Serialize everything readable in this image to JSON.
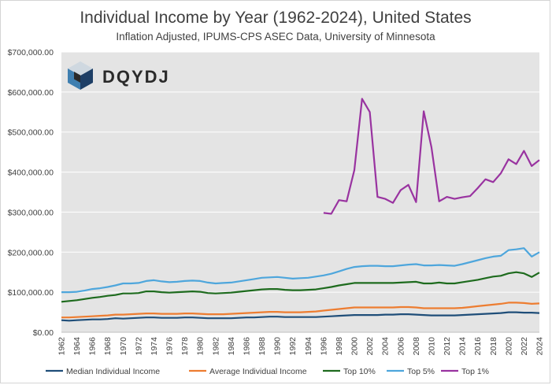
{
  "chart_data": {
    "type": "line",
    "title": "Individual Income by Year (1962-2024), United States",
    "subtitle": "Inflation Adjusted, IPUMS-CPS ASEC Data, University of Minnesota",
    "logo_text": "DQYDJ",
    "xlabel": "",
    "ylabel": "",
    "ylim": [
      0,
      700000
    ],
    "yticks": [
      0,
      100000,
      200000,
      300000,
      400000,
      500000,
      600000,
      700000
    ],
    "ytick_labels": [
      "$0.00",
      "$100,000.00",
      "$200,000.00",
      "$300,000.00",
      "$400,000.00",
      "$500,000.00",
      "$600,000.00",
      "$700,000.00"
    ],
    "xlim": [
      1962,
      2024
    ],
    "xtick_labels": [
      "1962",
      "1964",
      "1966",
      "1968",
      "1970",
      "1972",
      "1974",
      "1976",
      "1978",
      "1980",
      "1982",
      "1984",
      "1986",
      "1988",
      "1990",
      "1992",
      "1994",
      "1996",
      "1998",
      "2000",
      "2002",
      "2004",
      "2006",
      "2008",
      "2010",
      "2012",
      "2014",
      "2016",
      "2018",
      "2020",
      "2022",
      "2024"
    ],
    "grid": true,
    "legend_position": "bottom",
    "series": [
      {
        "name": "Median Individual Income",
        "color": "#1f4e79",
        "x": [
          1962,
          1963,
          1964,
          1965,
          1966,
          1967,
          1968,
          1969,
          1970,
          1971,
          1972,
          1973,
          1974,
          1975,
          1976,
          1977,
          1978,
          1979,
          1980,
          1981,
          1982,
          1983,
          1984,
          1985,
          1986,
          1987,
          1988,
          1989,
          1990,
          1991,
          1992,
          1993,
          1994,
          1995,
          1996,
          1997,
          1998,
          1999,
          2000,
          2001,
          2002,
          2003,
          2004,
          2005,
          2006,
          2007,
          2008,
          2009,
          2010,
          2011,
          2012,
          2013,
          2014,
          2015,
          2016,
          2017,
          2018,
          2019,
          2020,
          2021,
          2022,
          2023,
          2024
        ],
        "values": [
          30000,
          29000,
          30000,
          31000,
          32000,
          32000,
          33000,
          35000,
          34000,
          35000,
          36000,
          37000,
          37000,
          36000,
          36000,
          36000,
          37000,
          37000,
          36000,
          35000,
          35000,
          35000,
          35000,
          36000,
          37000,
          37000,
          38000,
          39000,
          39000,
          38000,
          38000,
          38000,
          38000,
          38000,
          39000,
          40000,
          41000,
          42000,
          43000,
          43000,
          43000,
          43000,
          44000,
          44000,
          45000,
          45000,
          44000,
          43000,
          42000,
          42000,
          42000,
          42000,
          43000,
          44000,
          45000,
          46000,
          47000,
          48000,
          50000,
          50000,
          49000,
          49000,
          48000
        ]
      },
      {
        "name": "Average Individual Income",
        "color": "#ed7d31",
        "x": [
          1962,
          1963,
          1964,
          1965,
          1966,
          1967,
          1968,
          1969,
          1970,
          1971,
          1972,
          1973,
          1974,
          1975,
          1976,
          1977,
          1978,
          1979,
          1980,
          1981,
          1982,
          1983,
          1984,
          1985,
          1986,
          1987,
          1988,
          1989,
          1990,
          1991,
          1992,
          1993,
          1994,
          1995,
          1996,
          1997,
          1998,
          1999,
          2000,
          2001,
          2002,
          2003,
          2004,
          2005,
          2006,
          2007,
          2008,
          2009,
          2010,
          2011,
          2012,
          2013,
          2014,
          2015,
          2016,
          2017,
          2018,
          2019,
          2020,
          2021,
          2022,
          2023,
          2024
        ],
        "values": [
          37000,
          37000,
          38000,
          39000,
          40000,
          41000,
          42000,
          44000,
          44000,
          45000,
          46000,
          47000,
          47000,
          46000,
          46000,
          46000,
          47000,
          47000,
          46000,
          45000,
          45000,
          45000,
          46000,
          47000,
          48000,
          49000,
          50000,
          51000,
          51000,
          50000,
          50000,
          50000,
          51000,
          52000,
          54000,
          56000,
          58000,
          60000,
          62000,
          62000,
          62000,
          62000,
          62000,
          62000,
          63000,
          63000,
          62000,
          60000,
          60000,
          60000,
          60000,
          60000,
          61000,
          63000,
          65000,
          67000,
          69000,
          71000,
          74000,
          74000,
          73000,
          71000,
          72000
        ]
      },
      {
        "name": "Top 10%",
        "color": "#1e6b1e",
        "x": [
          1962,
          1963,
          1964,
          1965,
          1966,
          1967,
          1968,
          1969,
          1970,
          1971,
          1972,
          1973,
          1974,
          1975,
          1976,
          1977,
          1978,
          1979,
          1980,
          1981,
          1982,
          1983,
          1984,
          1985,
          1986,
          1987,
          1988,
          1989,
          1990,
          1991,
          1992,
          1993,
          1994,
          1995,
          1996,
          1997,
          1998,
          1999,
          2000,
          2001,
          2002,
          2003,
          2004,
          2005,
          2006,
          2007,
          2008,
          2009,
          2010,
          2011,
          2012,
          2013,
          2014,
          2015,
          2016,
          2017,
          2018,
          2019,
          2020,
          2021,
          2022,
          2023,
          2024
        ],
        "values": [
          76000,
          78000,
          80000,
          83000,
          86000,
          88000,
          91000,
          93000,
          97000,
          97000,
          98000,
          102000,
          102000,
          100000,
          99000,
          100000,
          101000,
          102000,
          101000,
          98000,
          97000,
          98000,
          99000,
          101000,
          103000,
          105000,
          107000,
          108000,
          108000,
          106000,
          105000,
          105000,
          106000,
          107000,
          110000,
          113000,
          117000,
          120000,
          123000,
          123000,
          123000,
          123000,
          123000,
          123000,
          124000,
          125000,
          126000,
          122000,
          122000,
          124000,
          122000,
          122000,
          125000,
          128000,
          131000,
          135000,
          139000,
          141000,
          147000,
          150000,
          147000,
          138000,
          149000
        ]
      },
      {
        "name": "Top 5%",
        "color": "#4ea6dc",
        "x": [
          1962,
          1963,
          1964,
          1965,
          1966,
          1967,
          1968,
          1969,
          1970,
          1971,
          1972,
          1973,
          1974,
          1975,
          1976,
          1977,
          1978,
          1979,
          1980,
          1981,
          1982,
          1983,
          1984,
          1985,
          1986,
          1987,
          1988,
          1989,
          1990,
          1991,
          1992,
          1993,
          1994,
          1995,
          1996,
          1997,
          1998,
          1999,
          2000,
          2001,
          2002,
          2003,
          2004,
          2005,
          2006,
          2007,
          2008,
          2009,
          2010,
          2011,
          2012,
          2013,
          2014,
          2015,
          2016,
          2017,
          2018,
          2019,
          2020,
          2021,
          2022,
          2023,
          2024
        ],
        "values": [
          100000,
          100000,
          101000,
          104000,
          108000,
          110000,
          113000,
          117000,
          122000,
          122000,
          123000,
          128000,
          130000,
          127000,
          125000,
          126000,
          128000,
          129000,
          128000,
          124000,
          122000,
          123000,
          124000,
          127000,
          130000,
          133000,
          136000,
          137000,
          138000,
          136000,
          134000,
          135000,
          136000,
          139000,
          142000,
          146000,
          152000,
          158000,
          163000,
          165000,
          166000,
          166000,
          165000,
          165000,
          167000,
          169000,
          170000,
          167000,
          167000,
          168000,
          167000,
          166000,
          170000,
          175000,
          180000,
          185000,
          189000,
          191000,
          205000,
          207000,
          210000,
          189000,
          200000
        ]
      },
      {
        "name": "Top 1%",
        "color": "#9933a0",
        "x": [
          1996,
          1997,
          1998,
          1999,
          2000,
          2001,
          2002,
          2003,
          2004,
          2005,
          2006,
          2007,
          2008,
          2009,
          2010,
          2011,
          2012,
          2013,
          2014,
          2015,
          2016,
          2017,
          2018,
          2019,
          2020,
          2021,
          2022,
          2023,
          2024
        ],
        "values": [
          298000,
          296000,
          330000,
          327000,
          405000,
          583000,
          550000,
          338000,
          333000,
          323000,
          355000,
          368000,
          325000,
          552000,
          462000,
          327000,
          338000,
          333000,
          337000,
          340000,
          360000,
          382000,
          375000,
          397000,
          432000,
          420000,
          453000,
          415000,
          430000
        ]
      }
    ]
  }
}
